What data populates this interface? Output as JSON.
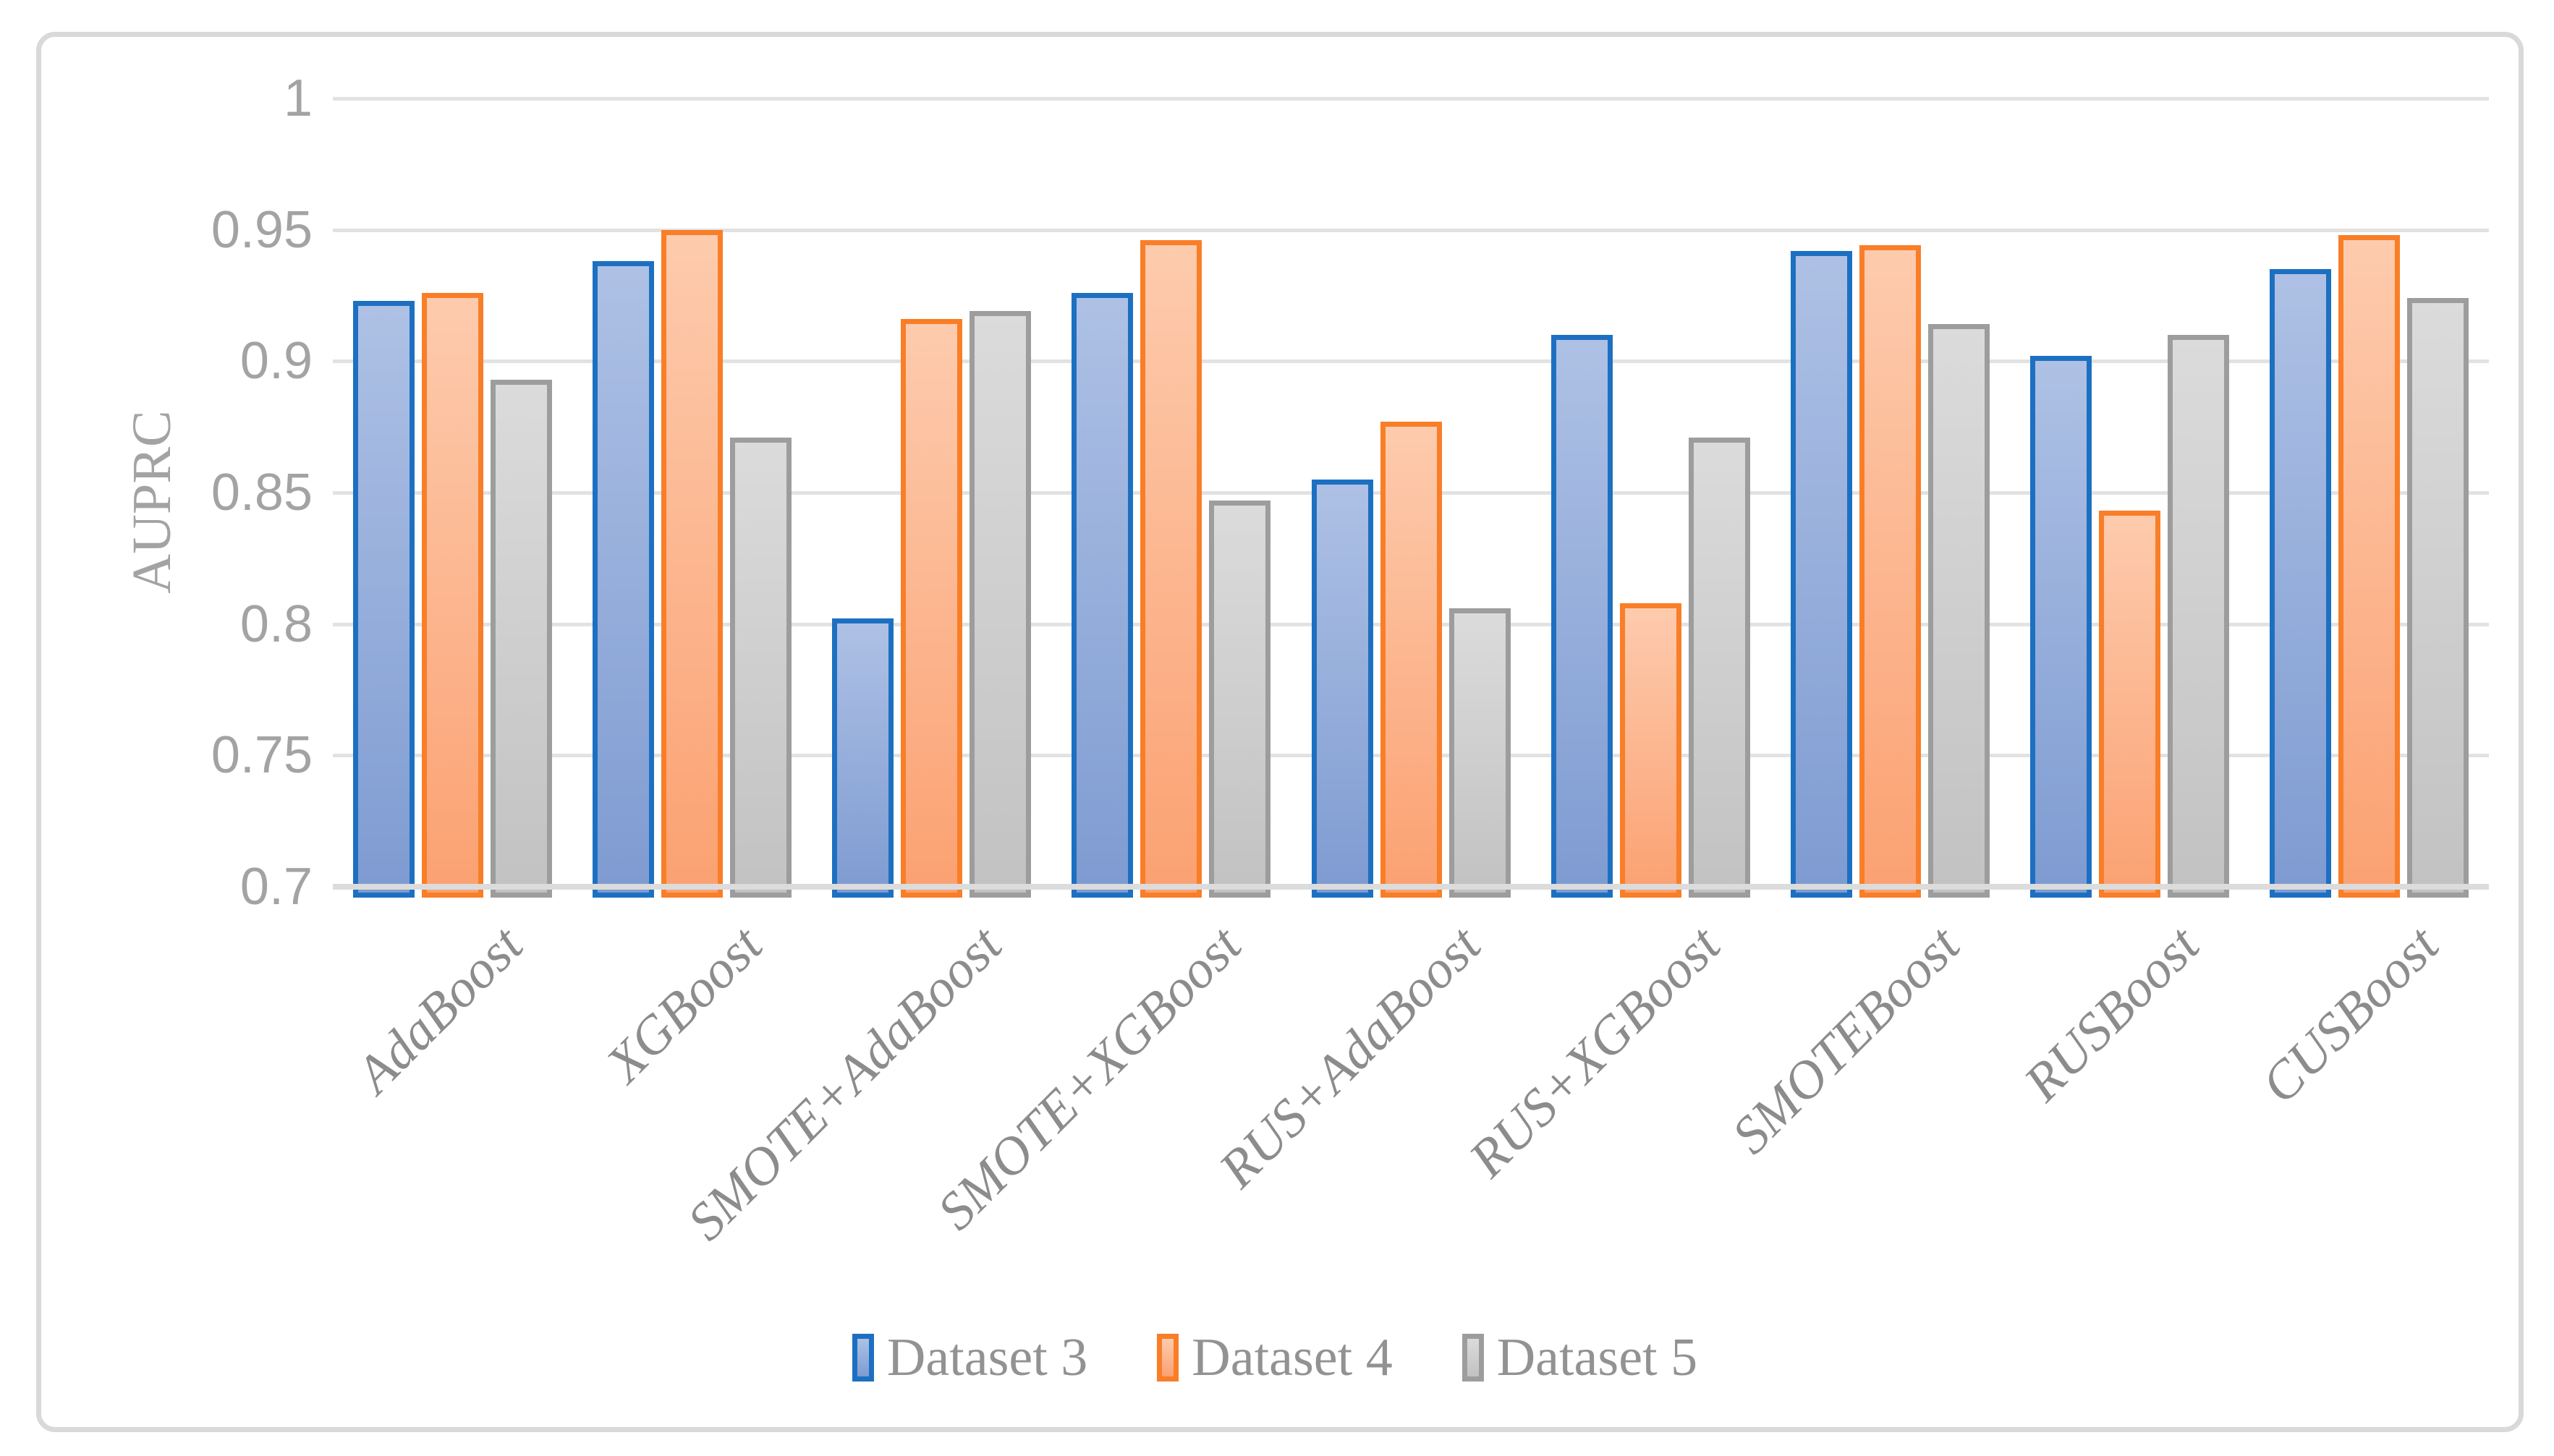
{
  "chart_data": {
    "type": "bar",
    "title": "",
    "ylabel": "AUPRC",
    "xlabel": "",
    "ylim": [
      0.7,
      1.0
    ],
    "ytick_step": 0.05,
    "ytick_labels": [
      "1",
      "0.95",
      "0.9",
      "0.85",
      "0.8",
      "0.75",
      "0.7"
    ],
    "grid": "horizontal",
    "legend_position": "bottom",
    "categories": [
      "AdaBoost",
      "XGBoost",
      "SMOTE+AdaBoost",
      "SMOTE+XGBoost",
      "RUS+AdaBoost",
      "RUS+XGBoost",
      "SMOTEBoost",
      "RUSBoost",
      "CUSBoost"
    ],
    "series": [
      {
        "name": "Dataset 3",
        "values": [
          0.923,
          0.938,
          0.802,
          0.926,
          0.855,
          0.91,
          0.942,
          0.902,
          0.935
        ],
        "border_color": "#1d70c1",
        "fill_top": "#aec1e5",
        "fill_bottom": "#7e9bd1"
      },
      {
        "name": "Dataset 4",
        "values": [
          0.926,
          0.95,
          0.916,
          0.946,
          0.877,
          0.808,
          0.944,
          0.843,
          0.948
        ],
        "border_color": "#f97e28",
        "fill_top": "#fdcbad",
        "fill_bottom": "#fba172"
      },
      {
        "name": "Dataset 5",
        "values": [
          0.893,
          0.871,
          0.919,
          0.847,
          0.806,
          0.871,
          0.914,
          0.91,
          0.924
        ],
        "border_color": "#9d9d9d",
        "fill_top": "#dbdbdb",
        "fill_bottom": "#c2c2c2"
      }
    ],
    "colors": {
      "gridline": "#e2e2e2",
      "axis_line": "#dcdcdc",
      "tick_text": "#a3a3a3",
      "category_text": "#8c8c8c",
      "legend_text": "#929292",
      "frame_border": "#d9d9d9",
      "background": "#ffffff"
    }
  }
}
